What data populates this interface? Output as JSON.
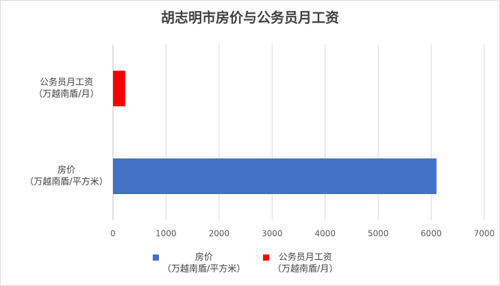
{
  "chart_data": {
    "type": "bar",
    "orientation": "horizontal",
    "title": "胡志明市房价与公务员月工资",
    "categories": [
      "公务员月工资\n（万越南盾/月）",
      "房价\n（万越南盾/平方米）"
    ],
    "series": [
      {
        "name": "房价\n（万越南盾/平方米）",
        "color": "#4472c4",
        "values": [
          null,
          6100
        ]
      },
      {
        "name": "公务员月工资\n（万越南盾/月）",
        "color": "#ff0000",
        "values": [
          230,
          null
        ]
      }
    ],
    "xlim": [
      0,
      7000
    ],
    "xticks": [
      0,
      1000,
      2000,
      3000,
      4000,
      5000,
      6000,
      7000
    ],
    "grid": true,
    "legend": "bottom"
  }
}
